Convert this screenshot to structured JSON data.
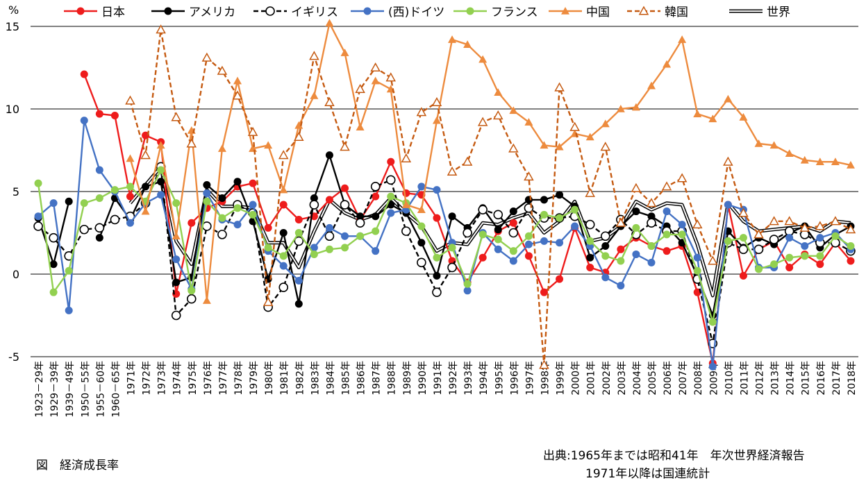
{
  "chart_data": {
    "type": "line",
    "y_unit_label": "%",
    "ylim": [
      -5,
      15
    ],
    "y_ticks": [
      -5,
      0,
      5,
      10,
      15
    ],
    "grid": true,
    "legend_position": "top",
    "categories": [
      "1923－29年",
      "1929－39年",
      "1939－49年",
      "1950－55年",
      "1955－60年",
      "1960－65年",
      "1971年",
      "1972年",
      "1973年",
      "1974年",
      "1975年",
      "1976年",
      "1977年",
      "1978年",
      "1979年",
      "1980年",
      "1981年",
      "1982年",
      "1983年",
      "1984年",
      "1985年",
      "1986年",
      "1987年",
      "1988年",
      "1989年",
      "1990年",
      "1991年",
      "1992年",
      "1993年",
      "1994年",
      "1995年",
      "1996年",
      "1997年",
      "1998年",
      "1999年",
      "2000年",
      "2001年",
      "2002年",
      "2003年",
      "2004年",
      "2005年",
      "2006年",
      "2007年",
      "2008年",
      "2009年",
      "2010年",
      "2011年",
      "2012年",
      "2013年",
      "2014年",
      "2015年",
      "2016年",
      "2017年",
      "2018年"
    ],
    "series": [
      {
        "name": "日本",
        "color": "#ee1c1c",
        "style": "solid-dot",
        "values": [
          null,
          null,
          null,
          12.1,
          9.7,
          9.6,
          4.7,
          8.4,
          8.0,
          -1.2,
          3.1,
          4.0,
          4.4,
          5.3,
          5.5,
          2.8,
          4.2,
          3.3,
          3.5,
          4.5,
          5.2,
          3.3,
          4.7,
          6.8,
          4.9,
          4.8,
          3.4,
          0.8,
          -0.5,
          1.0,
          2.6,
          3.1,
          1.1,
          -1.1,
          -0.3,
          2.8,
          0.4,
          0.1,
          1.5,
          2.2,
          1.7,
          1.4,
          1.7,
          -1.1,
          -5.4,
          4.2,
          -0.1,
          1.5,
          2.0,
          0.4,
          1.2,
          0.6,
          1.9,
          0.8
        ]
      },
      {
        "name": "アメリカ",
        "color": "#000000",
        "style": "solid-dot",
        "values": [
          3.4,
          0.6,
          4.4,
          null,
          2.2,
          4.6,
          3.3,
          5.3,
          5.6,
          -0.5,
          -0.2,
          5.4,
          4.6,
          5.6,
          3.2,
          -0.3,
          2.5,
          -1.8,
          4.6,
          7.2,
          4.2,
          3.5,
          3.5,
          4.2,
          3.7,
          1.9,
          -0.1,
          3.5,
          2.8,
          4.0,
          2.7,
          3.8,
          4.5,
          4.5,
          4.8,
          4.1,
          1.0,
          1.7,
          2.9,
          3.8,
          3.5,
          2.9,
          1.9,
          -0.1,
          -2.5,
          2.6,
          1.6,
          2.2,
          1.8,
          2.5,
          2.9,
          1.6,
          2.4,
          2.9
        ]
      },
      {
        "name": "イギリス",
        "color": "#000000",
        "style": "dashed-open",
        "values": [
          2.9,
          2.2,
          1.1,
          2.7,
          2.8,
          3.3,
          3.5,
          4.3,
          6.5,
          -2.5,
          -1.5,
          2.9,
          2.4,
          4.2,
          3.7,
          -2.0,
          -0.8,
          2.0,
          4.2,
          2.3,
          4.2,
          3.1,
          5.3,
          5.7,
          2.6,
          0.7,
          -1.1,
          0.4,
          2.5,
          3.9,
          3.6,
          2.5,
          4.0,
          3.4,
          3.4,
          3.5,
          3.0,
          2.3,
          3.3,
          2.4,
          3.1,
          2.6,
          2.6,
          -0.3,
          -4.2,
          1.9,
          1.5,
          1.5,
          2.1,
          2.6,
          2.4,
          1.9,
          1.9,
          1.4
        ]
      },
      {
        "name": "(西)ドイツ",
        "color": "#4472c4",
        "style": "solid-dot",
        "values": [
          3.5,
          4.3,
          -2.2,
          9.3,
          6.3,
          5.0,
          3.1,
          4.3,
          4.8,
          0.9,
          -0.9,
          4.9,
          3.3,
          3.0,
          4.2,
          1.4,
          0.5,
          -0.4,
          1.6,
          2.8,
          2.3,
          2.3,
          1.4,
          3.7,
          3.9,
          5.3,
          5.1,
          1.9,
          -1.0,
          2.5,
          1.5,
          0.8,
          1.8,
          2.0,
          1.9,
          2.9,
          1.7,
          -0.2,
          -0.7,
          1.2,
          0.7,
          3.8,
          3.0,
          1.0,
          -5.6,
          4.2,
          3.9,
          0.4,
          0.4,
          2.2,
          1.7,
          2.2,
          2.5,
          1.5
        ]
      },
      {
        "name": "フランス",
        "color": "#92d050",
        "style": "solid-dot",
        "values": [
          5.5,
          -1.1,
          0.2,
          4.3,
          4.6,
          5.1,
          5.3,
          4.4,
          6.3,
          4.3,
          -1.0,
          4.4,
          3.4,
          4.0,
          3.6,
          1.6,
          1.1,
          2.5,
          1.2,
          1.5,
          1.6,
          2.3,
          2.6,
          4.7,
          4.3,
          2.9,
          1.0,
          1.6,
          -0.6,
          2.4,
          2.1,
          1.4,
          2.3,
          3.6,
          3.4,
          3.9,
          2.0,
          1.1,
          0.8,
          2.8,
          1.7,
          2.4,
          2.4,
          0.2,
          -2.9,
          2.0,
          2.2,
          0.3,
          0.6,
          1.0,
          1.1,
          1.1,
          2.3,
          1.7
        ]
      },
      {
        "name": "中国",
        "color": "#ed8b3e",
        "style": "solid-tri",
        "values": [
          null,
          null,
          null,
          null,
          null,
          null,
          7.0,
          3.8,
          7.8,
          2.3,
          8.7,
          -1.6,
          7.6,
          11.7,
          7.6,
          7.8,
          5.1,
          9.0,
          10.8,
          15.2,
          13.4,
          8.9,
          11.7,
          11.2,
          4.2,
          3.9,
          9.3,
          14.2,
          13.9,
          13.0,
          11.0,
          9.9,
          9.2,
          7.8,
          7.7,
          8.5,
          8.3,
          9.1,
          10.0,
          10.1,
          11.4,
          12.7,
          14.2,
          9.7,
          9.4,
          10.6,
          9.5,
          7.9,
          7.8,
          7.3,
          6.9,
          6.8,
          6.8,
          6.6
        ]
      },
      {
        "name": "韓国",
        "color": "#c55a11",
        "style": "dashed-tri",
        "values": [
          null,
          null,
          null,
          null,
          null,
          null,
          10.5,
          7.2,
          14.8,
          9.5,
          7.9,
          13.1,
          12.3,
          10.8,
          8.6,
          -1.7,
          7.2,
          8.3,
          13.2,
          10.4,
          7.7,
          11.2,
          12.5,
          11.9,
          7.0,
          9.8,
          10.4,
          6.2,
          6.8,
          9.2,
          9.6,
          7.6,
          5.9,
          -5.5,
          11.3,
          8.9,
          4.9,
          7.7,
          3.1,
          5.2,
          4.3,
          5.3,
          5.8,
          3.0,
          0.8,
          6.8,
          3.7,
          2.4,
          3.2,
          3.2,
          2.8,
          2.9,
          3.2,
          2.7
        ]
      },
      {
        "name": "世界",
        "color": "#000000",
        "style": "double",
        "values": [
          null,
          null,
          null,
          null,
          null,
          null,
          4.3,
          5.4,
          6.5,
          2.0,
          0.6,
          5.1,
          4.1,
          4.1,
          4.0,
          1.9,
          1.9,
          0.4,
          2.6,
          4.5,
          3.7,
          3.3,
          3.6,
          4.6,
          3.7,
          2.9,
          1.4,
          1.9,
          1.8,
          3.1,
          3.0,
          3.4,
          3.7,
          2.5,
          3.2,
          4.4,
          2.0,
          2.2,
          2.9,
          4.4,
          3.9,
          4.3,
          4.2,
          1.8,
          -1.3,
          4.3,
          3.2,
          2.6,
          2.7,
          2.8,
          2.9,
          2.6,
          3.2,
          3.1
        ]
      }
    ]
  },
  "source_line1": "出典:1965年までは昭和41年　年次世界経済報告",
  "source_line2": "1971年以降は国連統計",
  "caption": "図　経済成長率"
}
